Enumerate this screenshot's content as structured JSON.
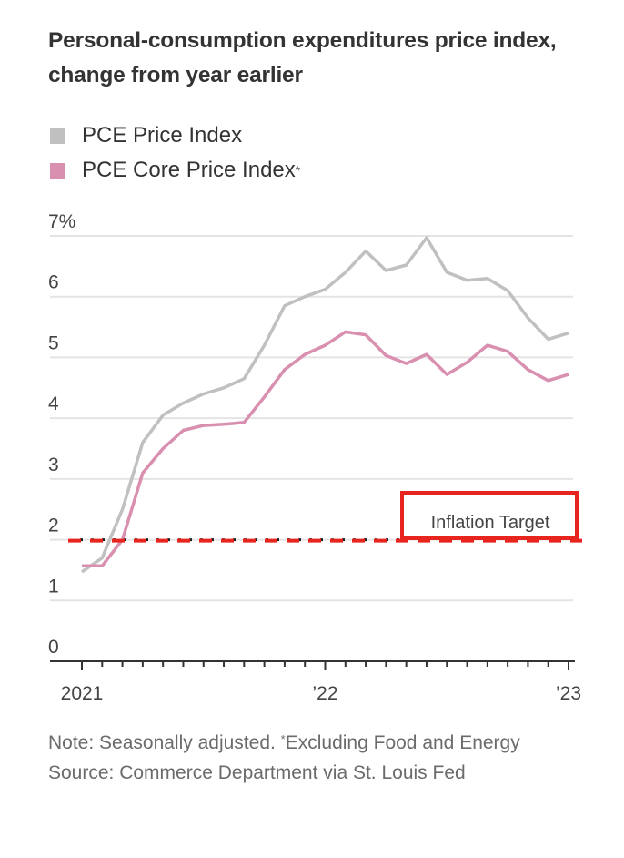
{
  "title": "Personal-consumption expenditures price index, change from year earlier",
  "legend": [
    {
      "label": "PCE Price Index",
      "color": "#c0c0c0",
      "footnote_mark": ""
    },
    {
      "label": "PCE Core Price Index",
      "color": "#d98fb0",
      "footnote_mark": "*"
    }
  ],
  "annotation": {
    "label": "Inflation Target",
    "value": 2,
    "box_color": "#e8241f",
    "line_color": "#e8241f",
    "dot_color": "#222222"
  },
  "notes": {
    "note_prefix": "Note: Seasonally adjusted. ",
    "footnote_mark": "*",
    "note_rest": "Excluding Food and Energy",
    "source": "Source: Commerce Department via St. Louis Fed"
  },
  "chart_data": {
    "type": "line",
    "title": "Personal-consumption expenditures price index, change from year earlier",
    "xlabel": "",
    "ylabel": "",
    "ylim": [
      0,
      7
    ],
    "yticks": [
      0,
      1,
      2,
      3,
      4,
      5,
      6,
      7
    ],
    "ytick_labels": [
      "0",
      "1",
      "2",
      "3",
      "4",
      "5",
      "6",
      "7%"
    ],
    "xtick_labels": [
      {
        "index": 0,
        "label": "2021"
      },
      {
        "index": 12,
        "label": "’22"
      },
      {
        "index": 24,
        "label": "’23"
      }
    ],
    "grid": true,
    "legend_position": "top-left",
    "x": [
      "2021-01",
      "2021-02",
      "2021-03",
      "2021-04",
      "2021-05",
      "2021-06",
      "2021-07",
      "2021-08",
      "2021-09",
      "2021-10",
      "2021-11",
      "2021-12",
      "2022-01",
      "2022-02",
      "2022-03",
      "2022-04",
      "2022-05",
      "2022-06",
      "2022-07",
      "2022-08",
      "2022-09",
      "2022-10",
      "2022-11",
      "2022-12",
      "2023-01"
    ],
    "series": [
      {
        "name": "PCE Price Index",
        "color": "#c0c0c0",
        "values": [
          1.47,
          1.7,
          2.5,
          3.6,
          4.05,
          4.25,
          4.4,
          4.5,
          4.65,
          5.2,
          5.85,
          6.0,
          6.12,
          6.4,
          6.75,
          6.43,
          6.52,
          6.97,
          6.4,
          6.27,
          6.3,
          6.1,
          5.65,
          5.3,
          5.4
        ]
      },
      {
        "name": "PCE Core Price Index*",
        "color": "#d98fb0",
        "values": [
          1.57,
          1.57,
          2.0,
          3.1,
          3.5,
          3.8,
          3.88,
          3.9,
          3.93,
          4.35,
          4.8,
          5.05,
          5.2,
          5.42,
          5.37,
          5.03,
          4.9,
          5.05,
          4.72,
          4.92,
          5.2,
          5.1,
          4.8,
          4.62,
          4.72
        ]
      }
    ],
    "reference_lines": [
      {
        "label": "Inflation Target",
        "y": 2
      }
    ]
  }
}
